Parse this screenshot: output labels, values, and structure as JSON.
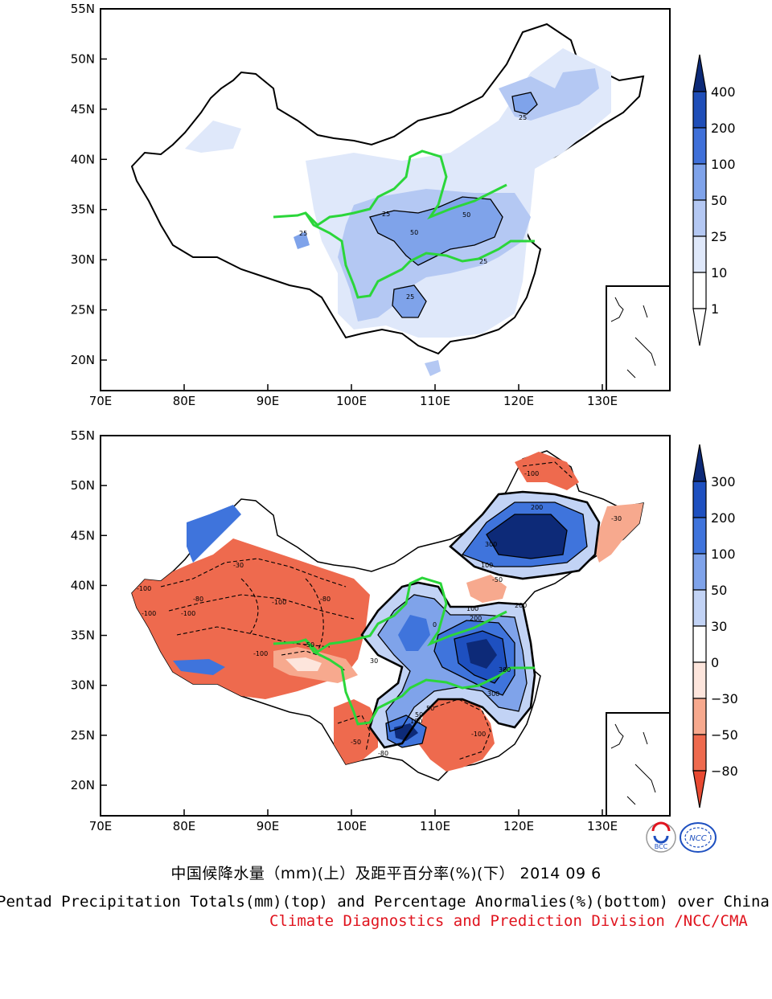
{
  "top_map": {
    "lat_labels": [
      "55N",
      "50N",
      "45N",
      "40N",
      "35N",
      "30N",
      "25N",
      "20N"
    ],
    "lon_labels": [
      "70E",
      "80E",
      "90E",
      "100E",
      "110E",
      "120E",
      "130E"
    ],
    "colorbar_labels": [
      "400",
      "200",
      "100",
      "50",
      "25",
      "10",
      "1"
    ],
    "colors": [
      "#ffffff",
      "#dfe8fa",
      "#b4c8f3",
      "#7fa3ea",
      "#3f70d9",
      "#1f4eb8",
      "#0d2a78"
    ],
    "contour_labels": [
      "25",
      "25",
      "25",
      "50",
      "50",
      "25",
      "25"
    ]
  },
  "bottom_map": {
    "lat_labels": [
      "55N",
      "50N",
      "45N",
      "40N",
      "35N",
      "30N",
      "25N",
      "20N"
    ],
    "lon_labels": [
      "70E",
      "80E",
      "90E",
      "100E",
      "110E",
      "120E",
      "130E"
    ],
    "colorbar_labels": [
      "300",
      "200",
      "100",
      "50",
      "30",
      "0",
      "−30",
      "−50",
      "−80"
    ],
    "colors": [
      "#0d2a78",
      "#1e50c0",
      "#3f74dc",
      "#7fa3ea",
      "#c2d3f5",
      "#ffffff",
      "#fde5dc",
      "#f7a98e",
      "#ee6a4e",
      "#e84a32"
    ],
    "contour_labels": [
      "-100",
      "-80",
      "-100",
      "-30",
      "-100",
      "-50",
      "-80",
      "-100",
      "-100",
      "-50",
      "-80",
      "-100",
      "100",
      "300",
      "200",
      "300",
      "100",
      "200",
      "0",
      "50",
      "30",
      "-30",
      "-50",
      "-100",
      "50",
      "100",
      "300",
      "200"
    ]
  },
  "logos": {
    "left": "BCC",
    "right": "NCC"
  },
  "footer": {
    "title_cn": "中国候降水量（mm)(上）及距平百分率(%)(下） 2014 09 6",
    "title_en": "Pentad Precipitation Totals(mm)(top) and Percentage Anormalies(%)(bottom) over China",
    "credit": "Climate Diagnostics and Prediction Division /NCC/CMA"
  }
}
